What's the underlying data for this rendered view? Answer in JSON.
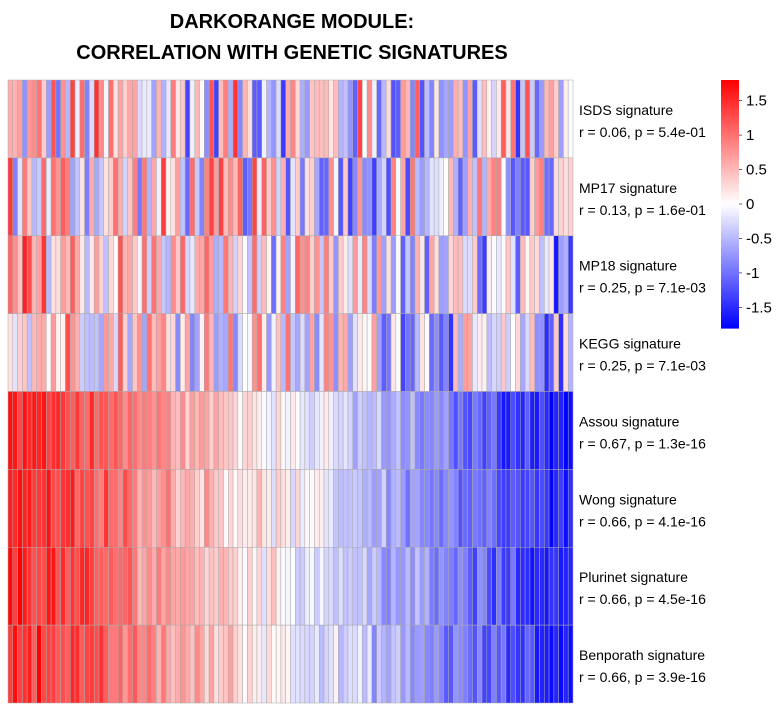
{
  "chart_data": {
    "type": "heatmap",
    "title_lines": [
      "DARKORANGE MODULE:",
      "CORRELATION WITH GENETIC SIGNATURES"
    ],
    "rows": [
      {
        "label": "ISDS signature",
        "stat": "r = 0.06, p = 5.4e-01",
        "r": 0.06,
        "p": 0.54
      },
      {
        "label": "MP17 signature",
        "stat": "r = 0.13, p = 1.6e-01",
        "r": 0.13,
        "p": 0.16
      },
      {
        "label": "MP18 signature",
        "stat": "r = 0.25, p = 7.1e-03",
        "r": 0.25,
        "p": 0.0071
      },
      {
        "label": "KEGG signature",
        "stat": "r = 0.25, p = 7.1e-03",
        "r": 0.25,
        "p": 0.0071
      },
      {
        "label": "Assou signature",
        "stat": "r = 0.67, p = 1.3e-16",
        "r": 0.67,
        "p": 1.3e-16
      },
      {
        "label": "Wong signature",
        "stat": "r = 0.66, p = 4.1e-16",
        "r": 0.66,
        "p": 4.1e-16
      },
      {
        "label": "Plurinet signature",
        "stat": "r = 0.66, p = 4.5e-16",
        "r": 0.66,
        "p": 4.5e-16
      },
      {
        "label": "Benporath signature",
        "stat": "r = 0.66, p = 3.9e-16",
        "r": 0.66,
        "p": 3.9e-16
      }
    ],
    "n_columns": 118,
    "value_range": [
      -1.8,
      1.8
    ],
    "colorscale": [
      "#0000ff",
      "#ffffff",
      "#ff0000"
    ],
    "legend": {
      "ticks": [
        1.5,
        1,
        0.5,
        0,
        -0.5,
        -1,
        -1.5
      ],
      "tick_labels": [
        "1.5",
        "1",
        "0.5",
        "0",
        "-0.5",
        "-1",
        "-1.5"
      ],
      "position": "right"
    },
    "cell_border_color": "#aaaaaa",
    "module_color": "darkorange"
  }
}
